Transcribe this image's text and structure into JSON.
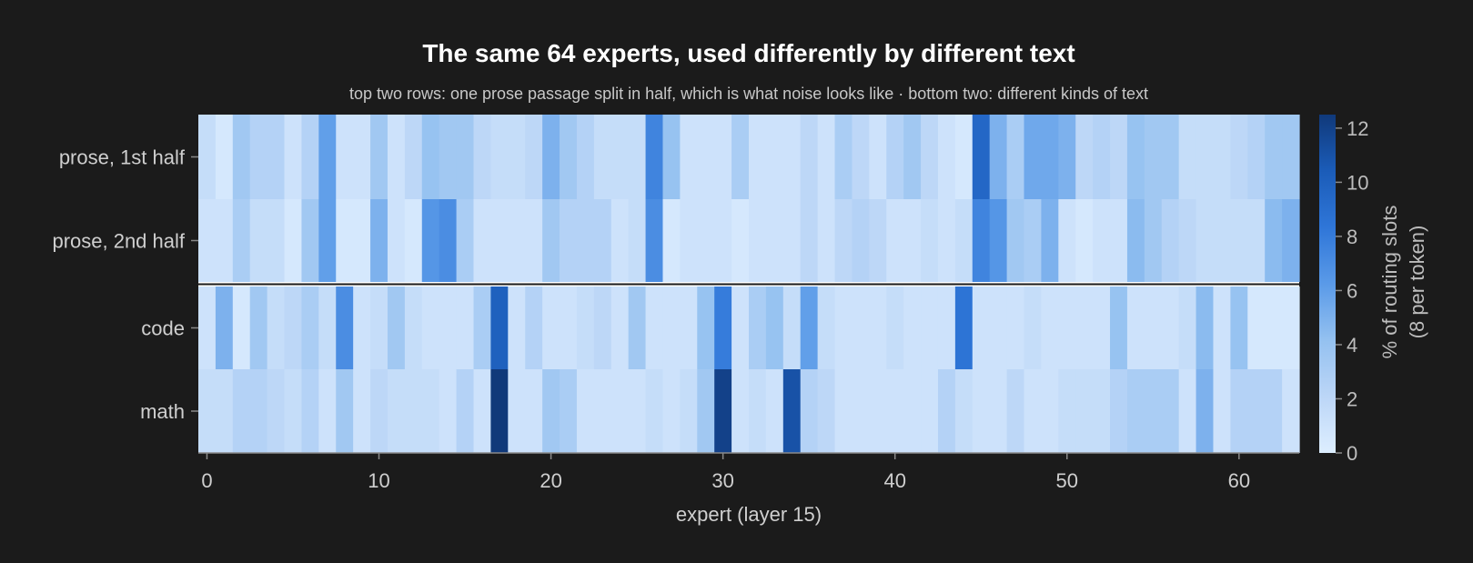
{
  "chart_data": {
    "type": "heatmap",
    "title": "The same 64 experts, used differently by different text",
    "subtitle": "top two rows: one prose passage split in half, which is what noise looks like  ·  bottom two: different kinds of text",
    "xlabel": "expert (layer 15)",
    "x_ticks": [
      0,
      10,
      20,
      30,
      40,
      50,
      60
    ],
    "xlim": [
      -0.5,
      63.5
    ],
    "rows": [
      "prose, 1st half",
      "prose, 2nd half",
      "code",
      "math"
    ],
    "colorbar": {
      "label_line1": "% of routing slots",
      "label_line2": "(8 per token)",
      "ticks": [
        0,
        2,
        4,
        6,
        8,
        10,
        12
      ],
      "range": [
        0,
        12.5
      ],
      "colors": [
        "#ddeeff",
        "#bcd6f7",
        "#94c1f0",
        "#5a9ae8",
        "#2f76d8",
        "#1b5cb8",
        "#10397a"
      ]
    },
    "separator_after_row": 1,
    "values": [
      [
        1.5,
        0.5,
        3.5,
        2.5,
        2.5,
        1.0,
        2.5,
        6.0,
        1.0,
        1.0,
        3.5,
        1.0,
        2.0,
        4.0,
        3.5,
        3.5,
        2.0,
        1.5,
        1.5,
        2.0,
        5.0,
        3.5,
        2.5,
        1.5,
        1.5,
        1.5,
        7.5,
        4.0,
        1.0,
        1.0,
        1.0,
        3.0,
        1.0,
        1.0,
        1.0,
        2.0,
        1.0,
        3.0,
        2.0,
        1.0,
        2.5,
        3.5,
        2.0,
        1.0,
        0.5,
        9.5,
        5.0,
        3.0,
        5.5,
        5.5,
        5.0,
        2.0,
        2.5,
        2.0,
        4.0,
        3.5,
        3.5,
        1.5,
        1.5,
        1.5,
        2.0,
        2.5,
        3.5,
        3.5
      ],
      [
        1.0,
        1.0,
        3.0,
        1.5,
        1.5,
        0.5,
        3.5,
        6.0,
        0.5,
        0.5,
        5.0,
        1.0,
        0.5,
        6.5,
        7.0,
        3.0,
        1.0,
        1.0,
        1.0,
        1.0,
        3.5,
        2.5,
        2.5,
        2.5,
        1.0,
        1.5,
        7.0,
        0.5,
        1.0,
        1.0,
        1.0,
        0.5,
        1.0,
        1.0,
        1.0,
        2.0,
        1.0,
        2.0,
        2.5,
        2.0,
        1.0,
        1.0,
        1.5,
        1.0,
        1.5,
        7.5,
        6.5,
        3.5,
        3.0,
        5.0,
        1.0,
        0.5,
        1.0,
        1.0,
        4.5,
        3.5,
        2.5,
        2.0,
        1.5,
        1.5,
        1.5,
        1.5,
        4.5,
        5.0
      ],
      [
        1.0,
        5.0,
        0.5,
        3.5,
        1.5,
        2.0,
        3.0,
        1.5,
        7.0,
        1.0,
        1.5,
        3.5,
        1.5,
        1.0,
        1.0,
        1.0,
        3.0,
        10.0,
        1.0,
        2.5,
        1.0,
        1.0,
        1.5,
        2.0,
        1.0,
        3.5,
        1.0,
        1.0,
        1.0,
        4.0,
        8.0,
        1.0,
        3.0,
        4.0,
        1.5,
        6.0,
        1.5,
        1.0,
        1.0,
        1.0,
        1.5,
        1.0,
        1.0,
        1.0,
        8.5,
        1.0,
        1.0,
        1.0,
        1.5,
        1.0,
        1.0,
        1.0,
        1.0,
        4.0,
        1.0,
        1.0,
        1.0,
        1.5,
        4.5,
        1.0,
        4.0,
        0.5,
        0.5,
        0.5
      ],
      [
        1.5,
        1.5,
        2.5,
        2.5,
        2.0,
        1.5,
        2.5,
        1.0,
        3.5,
        1.0,
        2.0,
        1.5,
        1.5,
        1.5,
        1.0,
        2.5,
        1.0,
        12.5,
        1.0,
        1.0,
        3.5,
        3.0,
        1.0,
        1.0,
        1.0,
        1.0,
        1.5,
        1.0,
        1.5,
        3.5,
        12.0,
        1.0,
        1.5,
        1.0,
        11.0,
        2.5,
        2.0,
        1.0,
        1.0,
        1.0,
        1.0,
        1.0,
        1.0,
        2.5,
        1.5,
        1.0,
        1.0,
        2.0,
        1.0,
        1.0,
        1.5,
        1.5,
        1.5,
        2.5,
        3.0,
        3.0,
        3.0,
        1.0,
        5.0,
        1.0,
        2.5,
        2.5,
        2.5,
        1.0
      ]
    ]
  }
}
